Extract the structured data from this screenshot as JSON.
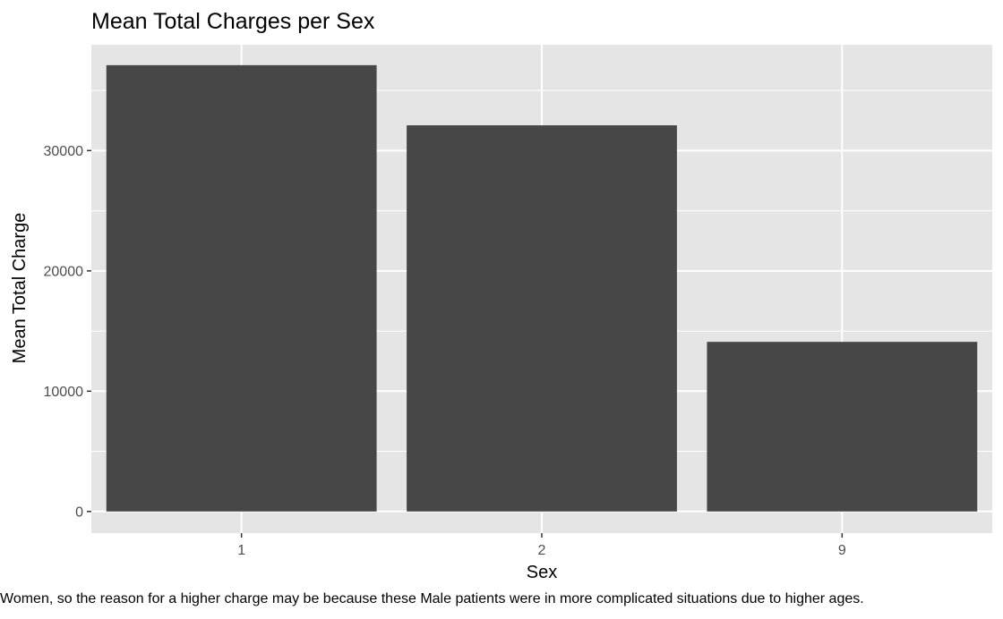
{
  "chart_data": {
    "type": "bar",
    "title": "Mean Total Charges per Sex",
    "xlabel": "Sex",
    "ylabel": "Mean Total Charge",
    "categories": [
      "1",
      "2",
      "9"
    ],
    "values": [
      37100,
      32100,
      14100
    ],
    "ylim": [
      -1800,
      38800
    ],
    "yticks": [
      0,
      10000,
      20000,
      30000
    ],
    "ytick_labels": [
      "0",
      "10000",
      "20000",
      "30000"
    ],
    "grid": true,
    "colors": {
      "panel": "#e5e5e5",
      "bar": "#474747",
      "grid": "#ffffff",
      "text": "#4d4d4d"
    }
  },
  "caption": "Women, so the reason for a higher charge may be because these Male patients were in more complicated situations due to higher ages."
}
